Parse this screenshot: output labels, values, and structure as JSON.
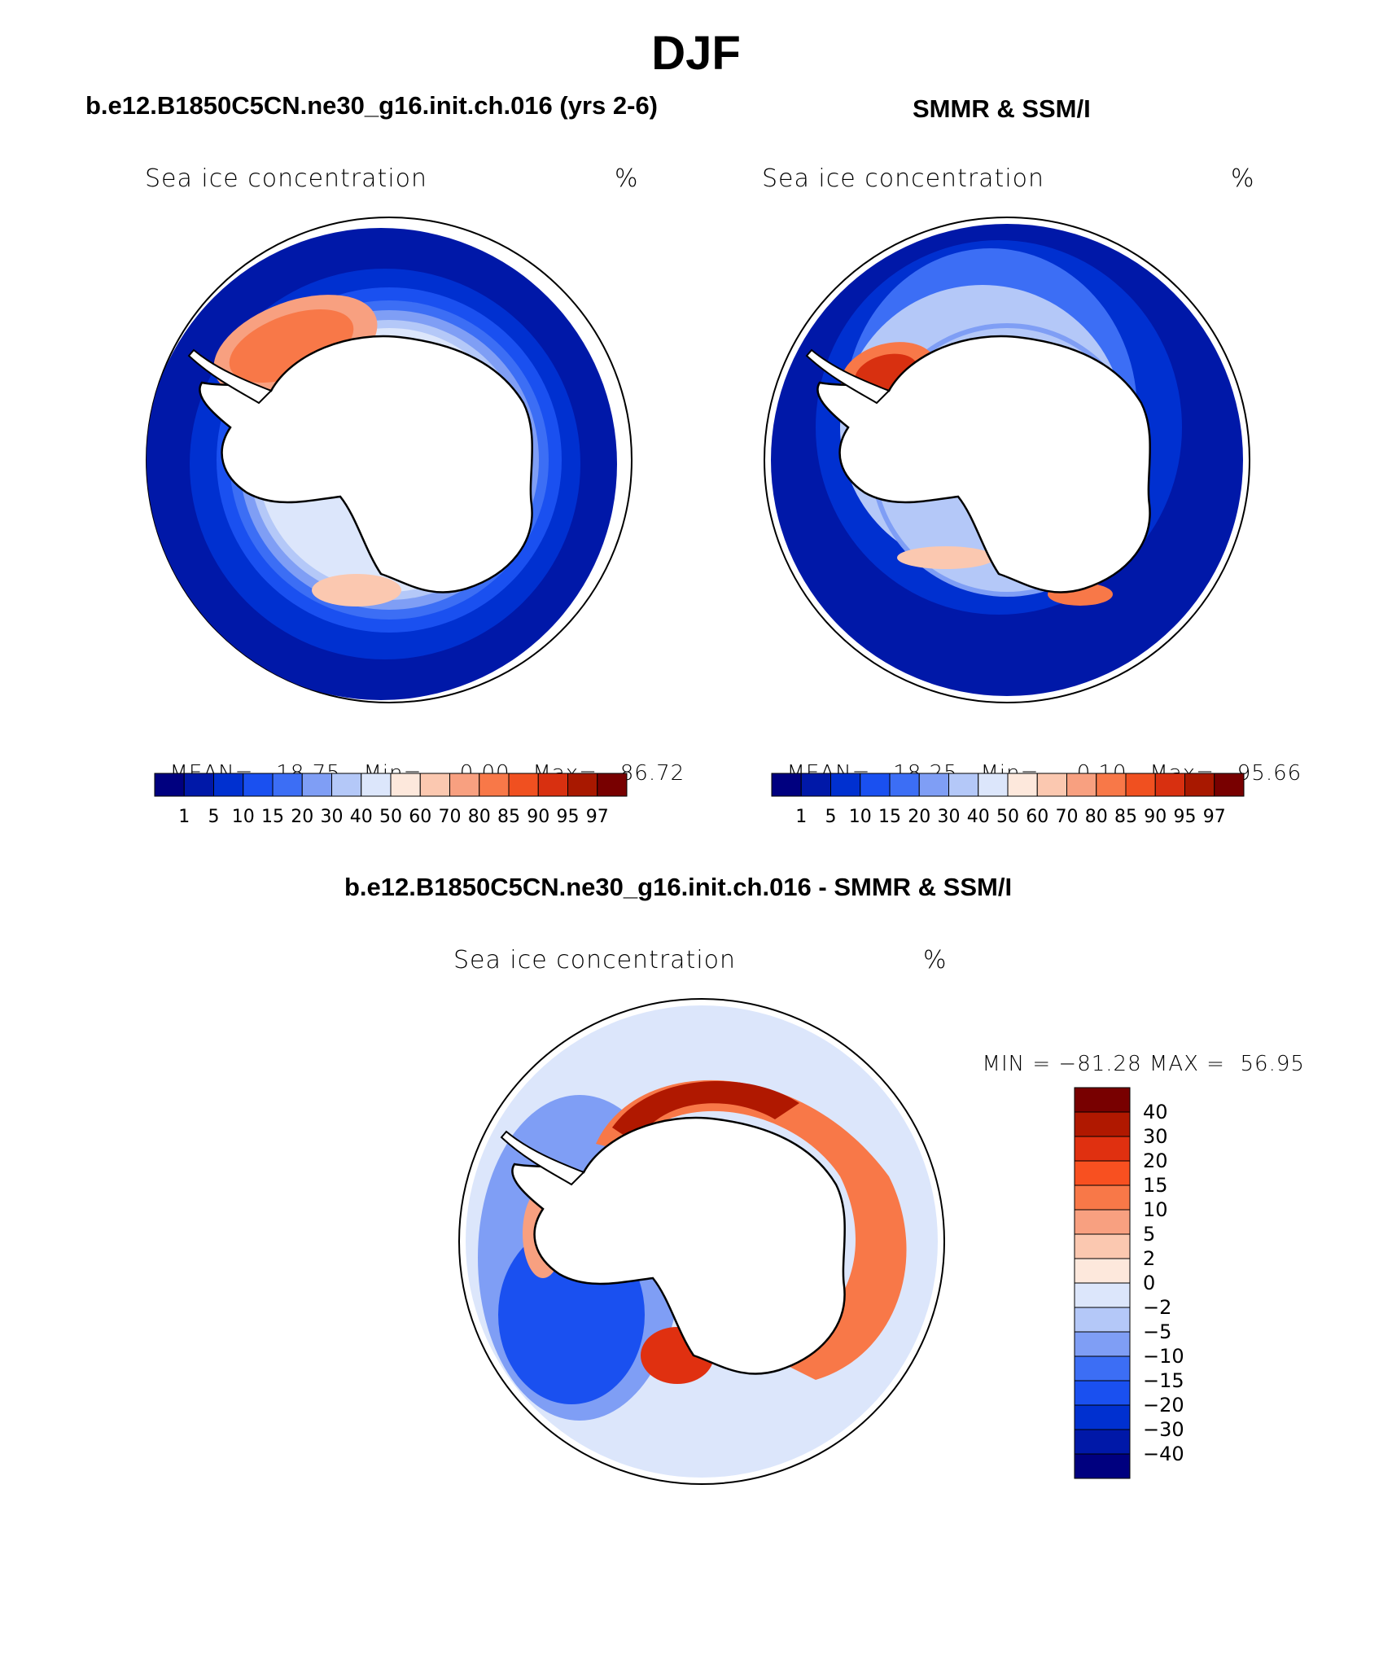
{
  "title": "DJF",
  "panels": [
    {
      "title": "b.e12.B1850C5CN.ne30_g16.init.ch.016 (yrs 2-6)",
      "variable": "Sea ice concentration",
      "units": "%",
      "stats": {
        "mean_label": "MEAN=",
        "mean": "18.75",
        "min_label": "Min=",
        "min": "0.00",
        "max_label": "Max=",
        "max": "86.72"
      }
    },
    {
      "title": "SMMR & SSM/I",
      "variable": "Sea ice concentration",
      "units": "%",
      "stats": {
        "mean_label": "MEAN=",
        "mean": "18.25",
        "min_label": "Min=",
        "min": "0.10",
        "max_label": "Max=",
        "max": "95.66"
      }
    }
  ],
  "diff_panel": {
    "title": "b.e12.B1850C5CN.ne30_g16.init.ch.016 - SMMR & SSM/I",
    "variable": "Sea ice concentration",
    "units": "%",
    "stats": {
      "min_label": "MIN =",
      "min": "−81.28",
      "max_label": "MAX =",
      "max": "56.95"
    }
  },
  "colorbar_abs": {
    "labels": [
      "1",
      "5",
      "10",
      "15",
      "20",
      "30",
      "40",
      "50",
      "60",
      "70",
      "80",
      "85",
      "90",
      "95",
      "97"
    ],
    "colors": [
      "#00007f",
      "#0018a8",
      "#0030d0",
      "#1a50f0",
      "#3c6ef5",
      "#7f9ef5",
      "#b4c8f8",
      "#dce6fb",
      "#fde8dc",
      "#fbc8b0",
      "#f8a080",
      "#f87848",
      "#f05020",
      "#d83010",
      "#a81800",
      "#780000"
    ]
  },
  "colorbar_diff": {
    "labels": [
      "40",
      "30",
      "20",
      "15",
      "10",
      "5",
      "2",
      "0",
      "−2",
      "−5",
      "−10",
      "−15",
      "−20",
      "−30",
      "−40"
    ],
    "colors": [
      "#780000",
      "#b01800",
      "#e03010",
      "#f85020",
      "#f87848",
      "#f8a080",
      "#fbc8b0",
      "#fde8dc",
      "#dce6fb",
      "#b4c8f8",
      "#7f9ef5",
      "#3c6ef5",
      "#1a50f0",
      "#0030d0",
      "#0018a8",
      "#00007f"
    ]
  }
}
